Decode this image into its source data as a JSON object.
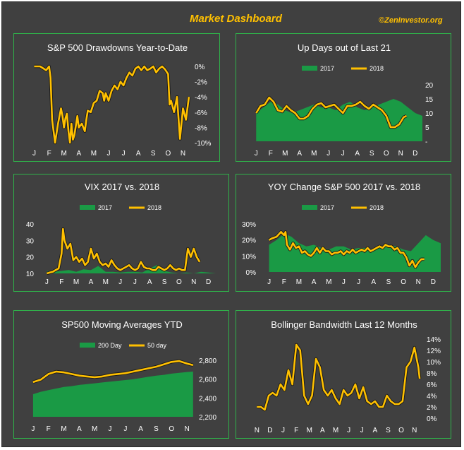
{
  "dashboard": {
    "title": "Market Dashboard",
    "credit": "©ZenInvestor.org",
    "colors": {
      "background": "#404040",
      "border": "#2fb34a",
      "area": "#1a9a45",
      "line": "#FFC000",
      "text": "#ffffff"
    }
  },
  "chart_data": [
    {
      "id": "drawdowns",
      "type": "line",
      "title": "S&P 500 Drawdowns Year-to-Date",
      "x_tick_labels": [
        "J",
        "F",
        "M",
        "A",
        "M",
        "J",
        "J",
        "A",
        "S",
        "O",
        "N"
      ],
      "y_tick_labels": [
        "0%",
        "-2%",
        "-4%",
        "-6%",
        "-8%",
        "-10%"
      ],
      "ylim": [
        -10,
        0
      ],
      "y_axis": "right",
      "series": [
        {
          "kind": "line",
          "color": "#FFC000",
          "x": [
            0,
            0.4,
            0.8,
            1.0,
            1.1,
            1.2,
            1.4,
            1.6,
            1.8,
            1.9,
            2.0,
            2.1,
            2.2,
            2.3,
            2.4,
            2.5,
            2.6,
            2.7,
            2.9,
            3.0,
            3.2,
            3.4,
            3.5,
            3.6,
            3.8,
            4.0,
            4.2,
            4.4,
            4.6,
            4.7,
            4.8,
            5.0,
            5.2,
            5.4,
            5.6,
            5.8,
            6.0,
            6.2,
            6.4,
            6.6,
            6.8,
            7.0,
            7.2,
            7.4,
            7.6,
            7.8,
            8.0,
            8.2,
            8.4,
            8.6,
            8.8,
            9.0,
            9.1,
            9.2,
            9.4,
            9.6,
            9.8,
            10.0,
            10.2,
            10.4
          ],
          "y": [
            0,
            0,
            -0.5,
            0,
            -1.5,
            -7,
            -10,
            -7.5,
            -5.5,
            -6.5,
            -8,
            -6.8,
            -6.2,
            -8.5,
            -10,
            -7.5,
            -9.6,
            -9,
            -6.5,
            -8,
            -7.5,
            -8.5,
            -7,
            -5.8,
            -6,
            -4.8,
            -4.5,
            -3.2,
            -3.5,
            -4.5,
            -3.5,
            -4.5,
            -3.2,
            -2.5,
            -3,
            -2.0,
            -2.5,
            -1.5,
            -0.8,
            -1.2,
            -0.3,
            0,
            -0.5,
            0,
            -0.5,
            -0.3,
            0,
            -0.8,
            -0.3,
            0,
            -0.4,
            -1.0,
            -5.0,
            -4.5,
            -6.0,
            -4.0,
            -9.5,
            -5.5,
            -7.0,
            -4.0
          ]
        }
      ]
    },
    {
      "id": "updays",
      "type": "area",
      "title": "Up Days out of Last  21",
      "x_tick_labels": [
        "J",
        "F",
        "M",
        "A",
        "M",
        "J",
        "J",
        "A",
        "S",
        "O",
        "N",
        "D"
      ],
      "y_tick_labels": [
        "20",
        "15",
        "10",
        "5",
        "-"
      ],
      "ylim": [
        0,
        20
      ],
      "y_axis": "right",
      "legend_position": "top",
      "series": [
        {
          "name": "2017",
          "kind": "area",
          "color": "#1a9a45",
          "x": [
            0,
            0.5,
            1,
            1.5,
            2,
            2.5,
            3,
            3.5,
            4,
            4.5,
            5,
            5.5,
            6,
            6.5,
            7,
            7.5,
            8,
            8.5,
            9,
            9.5,
            10,
            10.5,
            11,
            11.5
          ],
          "y": [
            10,
            12,
            14,
            13,
            11,
            10,
            11,
            12,
            13,
            12,
            12,
            11,
            13,
            14,
            12,
            11,
            12,
            13,
            14,
            15,
            14,
            12,
            10,
            9
          ]
        },
        {
          "name": "2018",
          "kind": "line",
          "color": "#FFC000",
          "x": [
            0,
            0.3,
            0.6,
            0.9,
            1.2,
            1.5,
            1.8,
            2.1,
            2.4,
            2.7,
            3.0,
            3.3,
            3.6,
            3.9,
            4.2,
            4.5,
            4.8,
            5.1,
            5.4,
            5.7,
            6.0,
            6.3,
            6.6,
            6.9,
            7.2,
            7.5,
            7.8,
            8.1,
            8.4,
            8.7,
            9.0,
            9.3,
            9.6,
            9.9,
            10.2,
            10.4
          ],
          "y": [
            10,
            12.5,
            13,
            15.5,
            14,
            11,
            10.5,
            12.5,
            11,
            10,
            8,
            8,
            9,
            11.5,
            13,
            13.5,
            12,
            12.5,
            13,
            11.5,
            10,
            12.5,
            12.5,
            13,
            14,
            12.5,
            11.5,
            13,
            12,
            11,
            9,
            5,
            5,
            6,
            8.5,
            9
          ]
        }
      ]
    },
    {
      "id": "vix",
      "type": "area",
      "title": "VIX 2017 vs. 2018",
      "x_tick_labels": [
        "J",
        "F",
        "M",
        "A",
        "M",
        "J",
        "J",
        "A",
        "S",
        "O",
        "N",
        "D"
      ],
      "y_tick_labels": [
        "40",
        "30",
        "20",
        "10"
      ],
      "ylim": [
        10,
        40
      ],
      "y_axis": "left",
      "legend_position": "top",
      "series": [
        {
          "name": "2017",
          "kind": "area",
          "color": "#1a9a45",
          "x": [
            0,
            0.5,
            1,
            1.5,
            2,
            2.5,
            3,
            3.5,
            4,
            4.5,
            5,
            5.5,
            6,
            6.5,
            7,
            7.5,
            8,
            8.5,
            9,
            9.5,
            10,
            10.5,
            11,
            11.5
          ],
          "y": [
            11.5,
            11,
            11.5,
            12,
            11,
            12.5,
            12,
            14.5,
            11,
            11,
            10.5,
            11,
            11,
            10.5,
            13,
            15,
            11.5,
            10.5,
            10,
            10.5,
            10,
            11,
            10.5,
            10
          ]
        },
        {
          "name": "2018",
          "kind": "line",
          "color": "#FFC000",
          "x": [
            0,
            0.2,
            0.4,
            0.6,
            0.8,
            1.0,
            1.1,
            1.2,
            1.4,
            1.6,
            1.8,
            2.0,
            2.2,
            2.4,
            2.6,
            2.8,
            3.0,
            3.2,
            3.4,
            3.6,
            3.8,
            4.0,
            4.2,
            4.4,
            4.6,
            4.8,
            5.0,
            5.2,
            5.4,
            5.6,
            5.8,
            6.0,
            6.2,
            6.4,
            6.6,
            6.8,
            7.0,
            7.2,
            7.4,
            7.6,
            7.8,
            8.0,
            8.2,
            8.4,
            8.6,
            8.8,
            9.0,
            9.2,
            9.4,
            9.6,
            9.8,
            10.0,
            10.2,
            10.4
          ],
          "y": [
            10,
            10.5,
            11,
            12,
            13,
            22,
            37,
            30,
            25,
            28,
            18,
            20,
            17,
            19,
            15,
            17,
            25,
            19,
            22,
            17,
            15,
            16,
            14,
            18,
            15,
            13,
            12,
            13,
            14,
            15,
            13,
            12,
            13,
            17,
            14,
            13,
            13,
            12,
            12,
            14,
            13,
            12,
            13,
            15,
            13,
            12,
            13,
            12,
            12,
            25,
            20,
            25,
            20,
            17
          ]
        }
      ]
    },
    {
      "id": "yoy",
      "type": "area",
      "title": "YOY Change S&P 500 2017 vs. 2018",
      "x_tick_labels": [
        "J",
        "F",
        "M",
        "A",
        "M",
        "J",
        "J",
        "A",
        "S",
        "O",
        "N",
        "D"
      ],
      "y_tick_labels": [
        "30%",
        "20%",
        "10%",
        "0%"
      ],
      "ylim": [
        0,
        30
      ],
      "y_axis": "left",
      "legend_position": "top",
      "series": [
        {
          "name": "2017",
          "kind": "area",
          "color": "#1a9a45",
          "x": [
            0,
            0.5,
            1,
            1.5,
            2,
            2.5,
            3,
            3.5,
            4,
            4.5,
            5,
            5.5,
            6,
            6.5,
            7,
            7.5,
            8,
            8.5,
            9,
            9.5,
            10,
            10.5,
            11,
            11.5
          ],
          "y": [
            17,
            20,
            24,
            22,
            18,
            16,
            17,
            15,
            14,
            16,
            16,
            14,
            15,
            15,
            14,
            16,
            17,
            16,
            14,
            13,
            18,
            23,
            20,
            18
          ]
        },
        {
          "name": "2018",
          "kind": "line",
          "color": "#FFC000",
          "x": [
            0,
            0.2,
            0.5,
            0.8,
            1.0,
            1.1,
            1.2,
            1.4,
            1.6,
            1.8,
            2.0,
            2.2,
            2.4,
            2.6,
            2.8,
            3.0,
            3.2,
            3.4,
            3.6,
            3.8,
            4.0,
            4.2,
            4.4,
            4.6,
            4.8,
            5.0,
            5.2,
            5.4,
            5.6,
            5.8,
            6.0,
            6.2,
            6.4,
            6.6,
            6.8,
            7.0,
            7.2,
            7.4,
            7.6,
            7.8,
            8.0,
            8.2,
            8.4,
            8.6,
            8.8,
            9.0,
            9.2,
            9.4,
            9.6,
            9.8,
            10.0,
            10.2,
            10.4
          ],
          "y": [
            20,
            21,
            22,
            25,
            23,
            25,
            17,
            14,
            18,
            15,
            16,
            12,
            13,
            11,
            10,
            12,
            15,
            12,
            15,
            13,
            13,
            11,
            12,
            12,
            13,
            11,
            13,
            12,
            14,
            12,
            13,
            14,
            13,
            15,
            13,
            14,
            15,
            16,
            15,
            17,
            16,
            16,
            14,
            15,
            12,
            12,
            9,
            4,
            7,
            3,
            6,
            8,
            8
          ]
        }
      ]
    },
    {
      "id": "sp500ma",
      "type": "area",
      "title": "SP500 Moving Averages YTD",
      "x_tick_labels": [
        "J",
        "F",
        "M",
        "A",
        "M",
        "J",
        "J",
        "A",
        "S",
        "O",
        "N"
      ],
      "y_tick_labels": [
        "2,800",
        "2,600",
        "2,400",
        "2,200"
      ],
      "ylim": [
        2200,
        2900
      ],
      "y_axis": "right",
      "legend_position": "top",
      "series": [
        {
          "name": "200 Day",
          "kind": "area",
          "color": "#1a9a45",
          "x": [
            0,
            0.5,
            1,
            1.5,
            2,
            2.5,
            3,
            3.5,
            4,
            4.5,
            5,
            5.5,
            6,
            6.5,
            7,
            7.5,
            8,
            8.5,
            9,
            9.5,
            10,
            10.4
          ],
          "y": [
            2480,
            2510,
            2530,
            2550,
            2570,
            2580,
            2595,
            2605,
            2615,
            2625,
            2635,
            2645,
            2655,
            2665,
            2680,
            2695,
            2710,
            2720,
            2735,
            2745,
            2755,
            2760
          ]
        },
        {
          "name": "50 day",
          "kind": "line",
          "color": "#FFC000",
          "x": [
            0,
            0.5,
            1,
            1.5,
            2,
            2.5,
            3,
            3.5,
            4,
            4.5,
            5,
            5.5,
            6,
            6.5,
            7,
            7.5,
            8,
            8.5,
            9,
            9.5,
            10,
            10.4
          ],
          "y": [
            2630,
            2660,
            2730,
            2760,
            2750,
            2730,
            2710,
            2700,
            2690,
            2700,
            2720,
            2730,
            2740,
            2760,
            2780,
            2800,
            2820,
            2850,
            2880,
            2890,
            2860,
            2840
          ]
        }
      ]
    },
    {
      "id": "bollinger",
      "type": "line",
      "title": "Bollinger Bandwidth Last 12 Months",
      "x_tick_labels": [
        "N",
        "D",
        "J",
        "F",
        "M",
        "A",
        "M",
        "J",
        "J",
        "A",
        "S",
        "O",
        "N"
      ],
      "y_tick_labels": [
        "14%",
        "12%",
        "10%",
        "8%",
        "6%",
        "4%",
        "2%",
        "0%"
      ],
      "ylim": [
        0,
        14
      ],
      "y_axis": "right",
      "series": [
        {
          "kind": "line",
          "color": "#FFC000",
          "x": [
            0,
            0.3,
            0.6,
            0.9,
            1.2,
            1.5,
            1.8,
            2.1,
            2.4,
            2.7,
            3.0,
            3.3,
            3.6,
            3.9,
            4.2,
            4.5,
            4.8,
            5.1,
            5.4,
            5.7,
            6.0,
            6.3,
            6.6,
            6.9,
            7.2,
            7.5,
            7.8,
            8.1,
            8.4,
            8.7,
            9.0,
            9.3,
            9.6,
            9.9,
            10.2,
            10.5,
            10.8,
            11.1,
            11.4,
            11.7,
            12.0,
            12.3,
            12.4
          ],
          "y": [
            2,
            2,
            1.5,
            4,
            4.5,
            4,
            6,
            5,
            8.5,
            6,
            13,
            12,
            4,
            2.5,
            4,
            10.5,
            9,
            5,
            4,
            5,
            3.5,
            2.5,
            5,
            4,
            4.5,
            6,
            3.5,
            5.5,
            3,
            2.5,
            3,
            2,
            2,
            4,
            3,
            2.5,
            2.5,
            3,
            9,
            10,
            12.5,
            9,
            7
          ]
        }
      ]
    }
  ]
}
